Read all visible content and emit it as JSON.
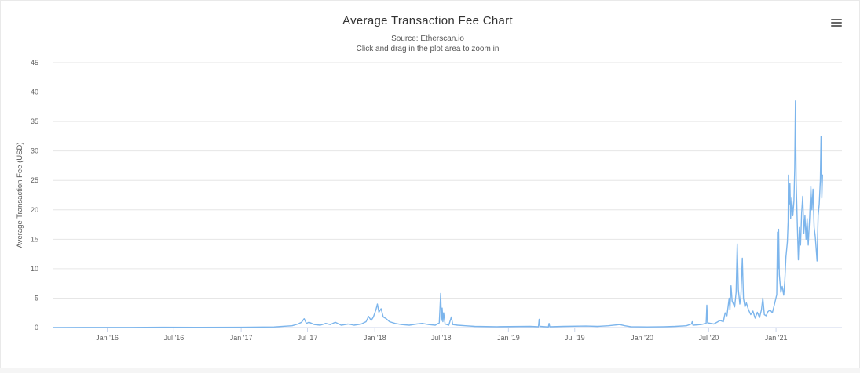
{
  "chart_data": {
    "type": "line",
    "title": "Average Transaction Fee Chart",
    "subtitle": "Source: Etherscan.io",
    "subtitle2": "Click and drag in the plot area to zoom in",
    "xlabel": "",
    "ylabel": "Average Transaction Fee (USD)",
    "ylim": [
      0,
      45
    ],
    "yticks": [
      0,
      5,
      10,
      15,
      20,
      25,
      30,
      35,
      40,
      45
    ],
    "xlim": [
      "2015-08-07",
      "2021-06-30"
    ],
    "xticks": [
      {
        "date": "2016-01-01",
        "label": "Jan '16"
      },
      {
        "date": "2016-07-01",
        "label": "Jul '16"
      },
      {
        "date": "2017-01-01",
        "label": "Jan '17"
      },
      {
        "date": "2017-07-01",
        "label": "Jul '17"
      },
      {
        "date": "2018-01-01",
        "label": "Jan '18"
      },
      {
        "date": "2018-07-01",
        "label": "Jul '18"
      },
      {
        "date": "2019-01-01",
        "label": "Jan '19"
      },
      {
        "date": "2019-07-01",
        "label": "Jul '19"
      },
      {
        "date": "2020-01-01",
        "label": "Jan '20"
      },
      {
        "date": "2020-07-01",
        "label": "Jul '20"
      },
      {
        "date": "2021-01-01",
        "label": "Jan '21"
      }
    ],
    "grid": true,
    "series": [
      {
        "color": "#7cb5ec",
        "points": [
          [
            "2015-08-07",
            0.0
          ],
          [
            "2015-11-01",
            0.02
          ],
          [
            "2016-03-01",
            0.03
          ],
          [
            "2016-06-01",
            0.05
          ],
          [
            "2016-09-01",
            0.04
          ],
          [
            "2017-01-01",
            0.05
          ],
          [
            "2017-04-01",
            0.1
          ],
          [
            "2017-05-20",
            0.3
          ],
          [
            "2017-06-05",
            0.6
          ],
          [
            "2017-06-15",
            0.9
          ],
          [
            "2017-06-22",
            1.5
          ],
          [
            "2017-06-28",
            0.7
          ],
          [
            "2017-07-05",
            0.9
          ],
          [
            "2017-07-20",
            0.5
          ],
          [
            "2017-08-05",
            0.4
          ],
          [
            "2017-08-20",
            0.7
          ],
          [
            "2017-09-01",
            0.5
          ],
          [
            "2017-09-15",
            0.9
          ],
          [
            "2017-10-01",
            0.4
          ],
          [
            "2017-10-20",
            0.6
          ],
          [
            "2017-11-05",
            0.4
          ],
          [
            "2017-11-25",
            0.6
          ],
          [
            "2017-12-08",
            1.0
          ],
          [
            "2017-12-15",
            1.9
          ],
          [
            "2017-12-22",
            1.2
          ],
          [
            "2017-12-28",
            1.8
          ],
          [
            "2018-01-04",
            3.0
          ],
          [
            "2018-01-08",
            4.0
          ],
          [
            "2018-01-12",
            2.6
          ],
          [
            "2018-01-18",
            3.2
          ],
          [
            "2018-01-24",
            1.8
          ],
          [
            "2018-02-01",
            1.5
          ],
          [
            "2018-02-10",
            1.0
          ],
          [
            "2018-02-25",
            0.7
          ],
          [
            "2018-03-15",
            0.5
          ],
          [
            "2018-04-05",
            0.4
          ],
          [
            "2018-04-25",
            0.6
          ],
          [
            "2018-05-10",
            0.7
          ],
          [
            "2018-05-28",
            0.5
          ],
          [
            "2018-06-15",
            0.4
          ],
          [
            "2018-06-26",
            0.8
          ],
          [
            "2018-06-30",
            5.8
          ],
          [
            "2018-07-02",
            1.2
          ],
          [
            "2018-07-04",
            3.3
          ],
          [
            "2018-07-06",
            1.0
          ],
          [
            "2018-07-08",
            2.5
          ],
          [
            "2018-07-12",
            0.6
          ],
          [
            "2018-07-22",
            0.4
          ],
          [
            "2018-07-29",
            1.8
          ],
          [
            "2018-08-02",
            0.5
          ],
          [
            "2018-08-15",
            0.4
          ],
          [
            "2018-09-05",
            0.3
          ],
          [
            "2018-10-01",
            0.2
          ],
          [
            "2018-12-01",
            0.15
          ],
          [
            "2019-03-01",
            0.2
          ],
          [
            "2019-03-24",
            0.15
          ],
          [
            "2019-03-26",
            1.4
          ],
          [
            "2019-03-28",
            0.2
          ],
          [
            "2019-04-20",
            0.1
          ],
          [
            "2019-04-22",
            0.7
          ],
          [
            "2019-04-24",
            0.15
          ],
          [
            "2019-06-01",
            0.2
          ],
          [
            "2019-08-01",
            0.25
          ],
          [
            "2019-09-01",
            0.2
          ],
          [
            "2019-10-01",
            0.3
          ],
          [
            "2019-11-01",
            0.5
          ],
          [
            "2019-11-15",
            0.3
          ],
          [
            "2019-12-01",
            0.15
          ],
          [
            "2020-01-15",
            0.1
          ],
          [
            "2020-03-01",
            0.15
          ],
          [
            "2020-04-01",
            0.2
          ],
          [
            "2020-05-01",
            0.3
          ],
          [
            "2020-05-15",
            0.6
          ],
          [
            "2020-05-17",
            1.0
          ],
          [
            "2020-05-19",
            0.4
          ],
          [
            "2020-06-10",
            0.5
          ],
          [
            "2020-06-24",
            0.7
          ],
          [
            "2020-06-26",
            3.8
          ],
          [
            "2020-06-28",
            0.8
          ],
          [
            "2020-07-15",
            0.6
          ],
          [
            "2020-08-01",
            1.2
          ],
          [
            "2020-08-10",
            1.0
          ],
          [
            "2020-08-15",
            2.5
          ],
          [
            "2020-08-20",
            2.0
          ],
          [
            "2020-08-26",
            5.0
          ],
          [
            "2020-08-28",
            3.0
          ],
          [
            "2020-08-31",
            7.1
          ],
          [
            "2020-09-03",
            4.5
          ],
          [
            "2020-09-10",
            3.5
          ],
          [
            "2020-09-14",
            6.0
          ],
          [
            "2020-09-17",
            14.2
          ],
          [
            "2020-09-20",
            6.5
          ],
          [
            "2020-09-24",
            4.0
          ],
          [
            "2020-09-27",
            5.5
          ],
          [
            "2020-10-01",
            11.8
          ],
          [
            "2020-10-04",
            5.0
          ],
          [
            "2020-10-08",
            3.5
          ],
          [
            "2020-10-12",
            4.2
          ],
          [
            "2020-10-18",
            3.0
          ],
          [
            "2020-10-24",
            2.2
          ],
          [
            "2020-10-30",
            2.8
          ],
          [
            "2020-11-05",
            1.6
          ],
          [
            "2020-11-11",
            2.6
          ],
          [
            "2020-11-17",
            1.7
          ],
          [
            "2020-11-22",
            3.0
          ],
          [
            "2020-11-26",
            5.0
          ],
          [
            "2020-11-30",
            2.2
          ],
          [
            "2020-12-05",
            2.0
          ],
          [
            "2020-12-10",
            2.7
          ],
          [
            "2020-12-16",
            3.0
          ],
          [
            "2020-12-22",
            2.5
          ],
          [
            "2020-12-28",
            4.0
          ],
          [
            "2021-01-03",
            5.6
          ],
          [
            "2021-01-05",
            16.2
          ],
          [
            "2021-01-07",
            10.0
          ],
          [
            "2021-01-08",
            16.7
          ],
          [
            "2021-01-10",
            9.0
          ],
          [
            "2021-01-14",
            6.0
          ],
          [
            "2021-01-18",
            7.0
          ],
          [
            "2021-01-22",
            5.5
          ],
          [
            "2021-01-25",
            8.0
          ],
          [
            "2021-01-28",
            12.0
          ],
          [
            "2021-02-01",
            14.5
          ],
          [
            "2021-02-03",
            18.0
          ],
          [
            "2021-02-04",
            25.9
          ],
          [
            "2021-02-06",
            21.0
          ],
          [
            "2021-02-08",
            24.5
          ],
          [
            "2021-02-10",
            18.5
          ],
          [
            "2021-02-13",
            22.0
          ],
          [
            "2021-02-16",
            19.0
          ],
          [
            "2021-02-19",
            21.5
          ],
          [
            "2021-02-21",
            27.0
          ],
          [
            "2021-02-23",
            38.5
          ],
          [
            "2021-02-25",
            25.0
          ],
          [
            "2021-02-28",
            18.0
          ],
          [
            "2021-03-03",
            11.5
          ],
          [
            "2021-03-06",
            17.0
          ],
          [
            "2021-03-09",
            14.0
          ],
          [
            "2021-03-12",
            19.5
          ],
          [
            "2021-03-15",
            22.3
          ],
          [
            "2021-03-18",
            16.0
          ],
          [
            "2021-03-21",
            19.0
          ],
          [
            "2021-03-24",
            15.0
          ],
          [
            "2021-03-27",
            18.5
          ],
          [
            "2021-03-30",
            14.0
          ],
          [
            "2021-04-03",
            19.0
          ],
          [
            "2021-04-06",
            24.0
          ],
          [
            "2021-04-09",
            20.0
          ],
          [
            "2021-04-12",
            23.5
          ],
          [
            "2021-04-15",
            17.0
          ],
          [
            "2021-04-18",
            15.5
          ],
          [
            "2021-04-21",
            13.0
          ],
          [
            "2021-04-23",
            11.3
          ],
          [
            "2021-04-26",
            19.0
          ],
          [
            "2021-04-29",
            21.0
          ],
          [
            "2021-05-02",
            25.0
          ],
          [
            "2021-05-04",
            32.5
          ],
          [
            "2021-05-06",
            22.0
          ],
          [
            "2021-05-08",
            26.0
          ]
        ]
      }
    ]
  },
  "toolbar": {
    "menu_icon": "hamburger-menu-icon"
  }
}
